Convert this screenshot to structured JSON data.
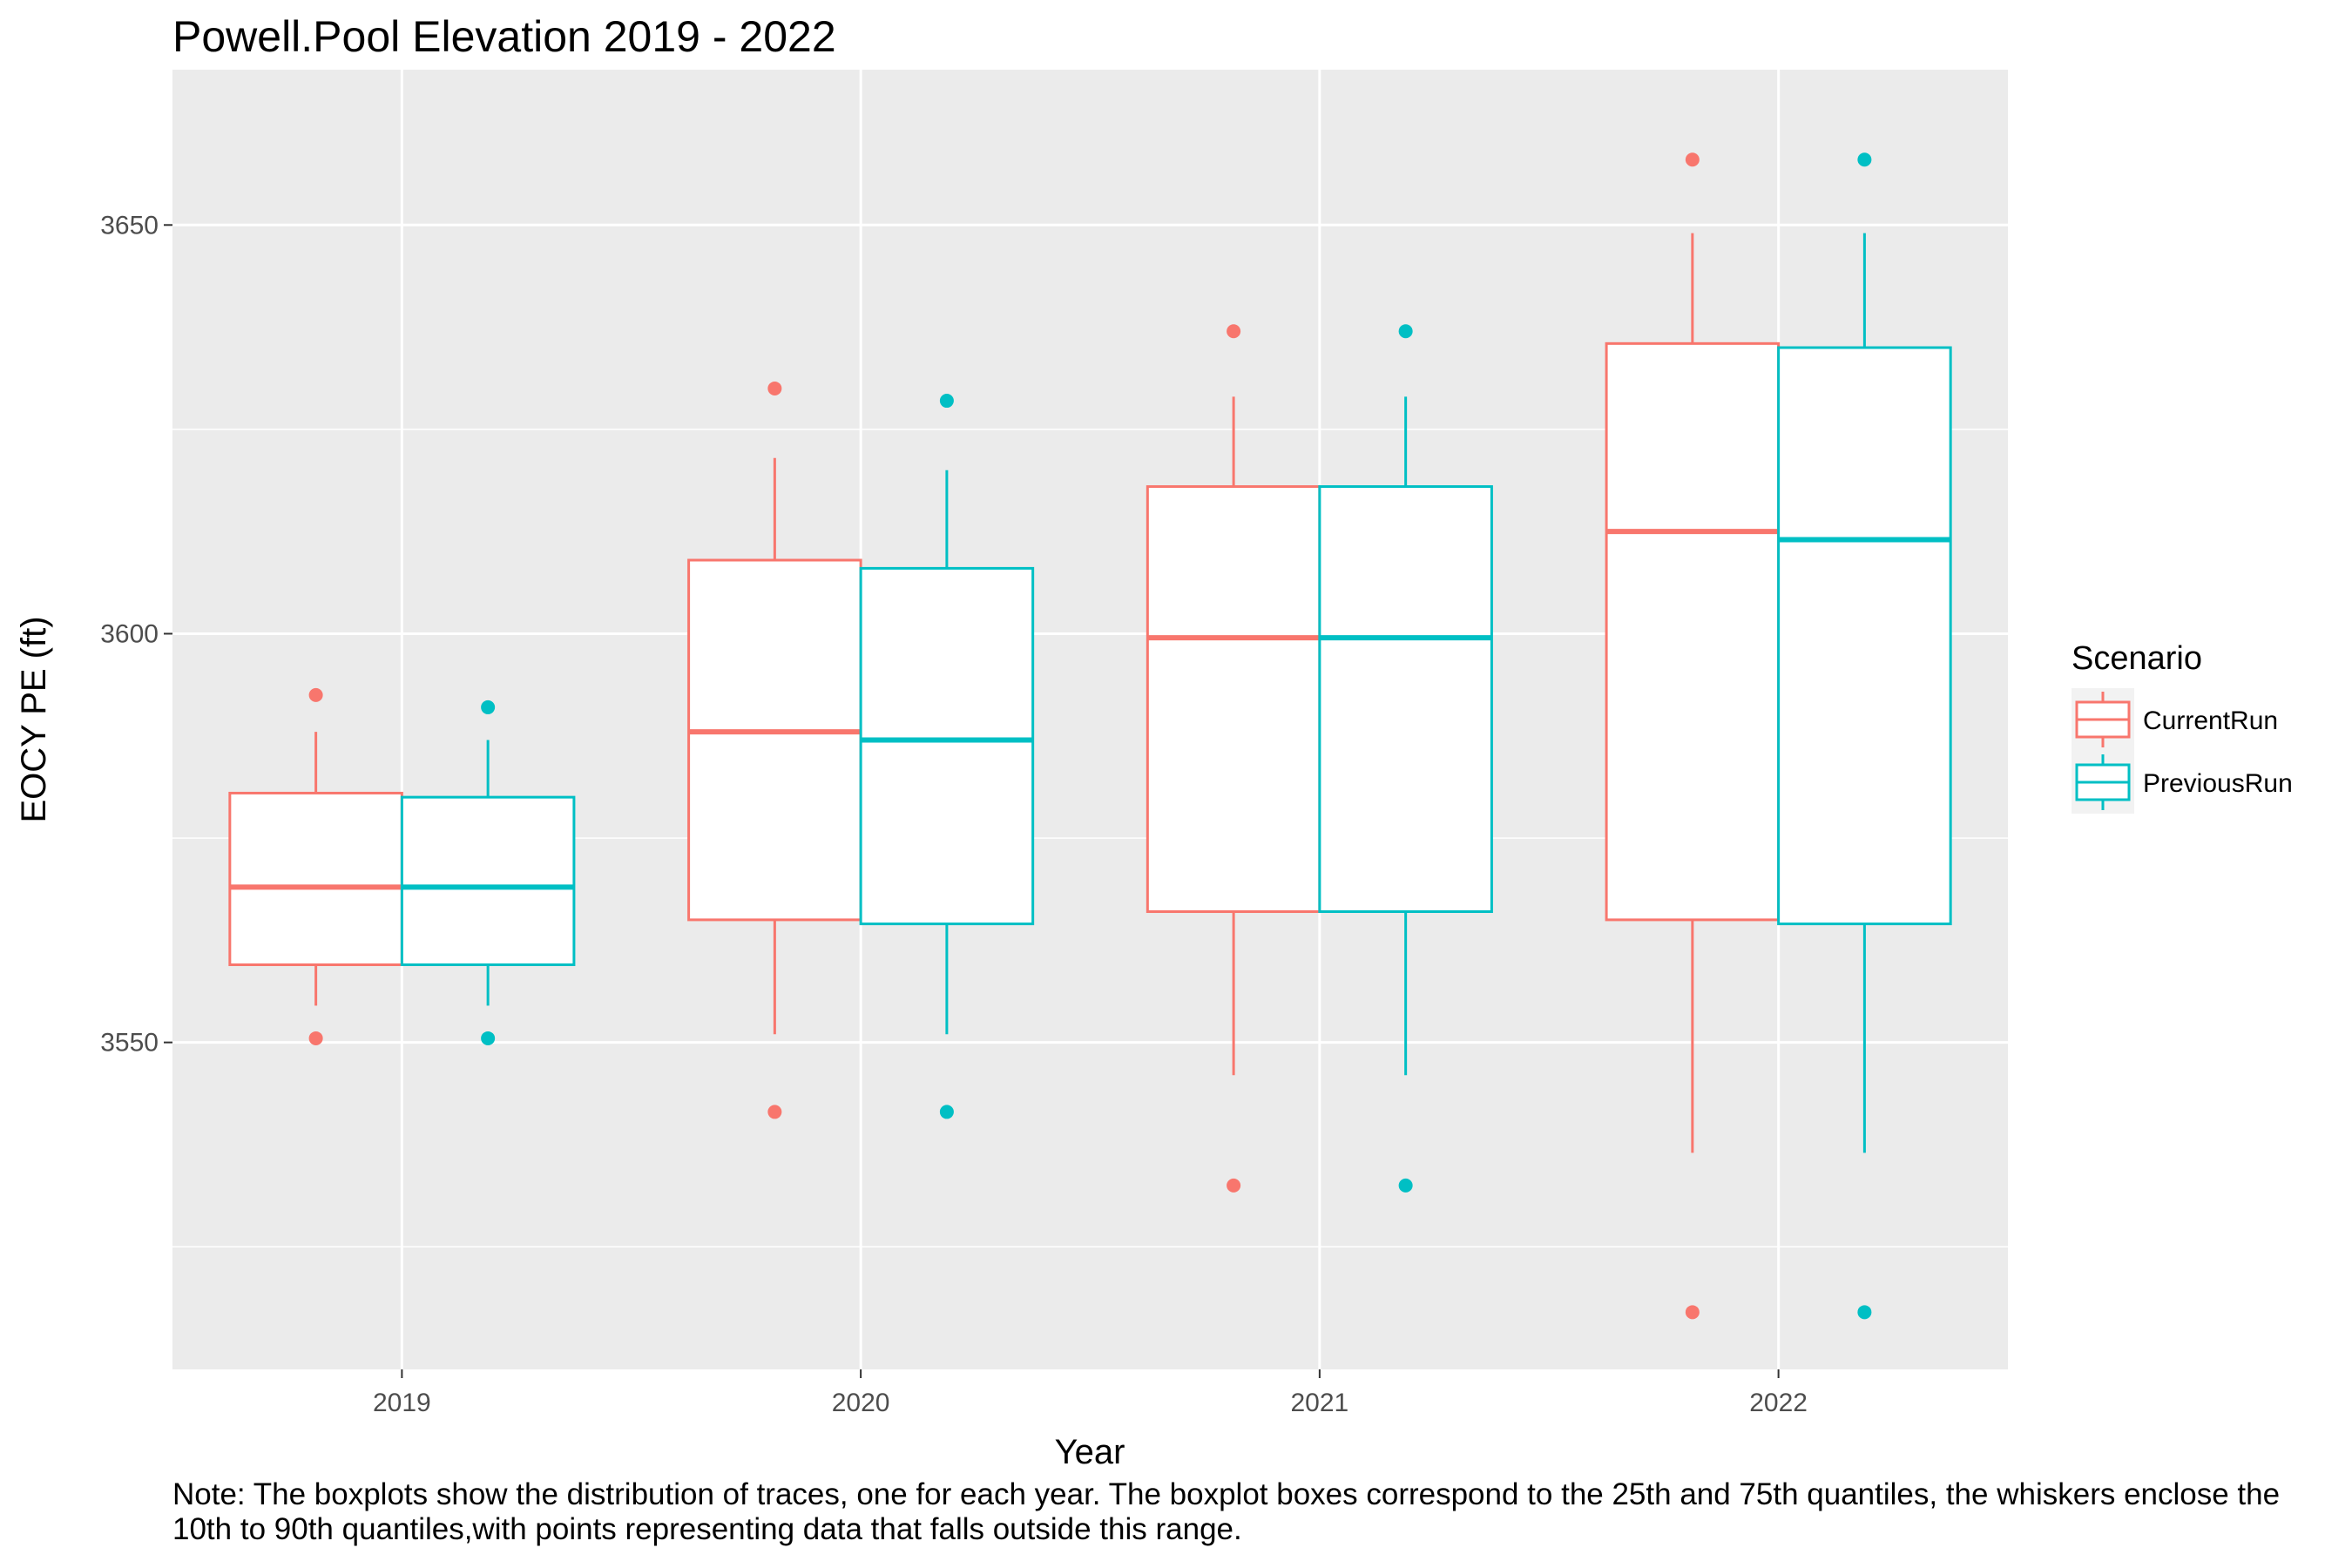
{
  "chart_data": {
    "type": "box",
    "title": "Powell.Pool Elevation 2019 - 2022",
    "xlabel": "Year",
    "ylabel": "EOCY PE (ft)",
    "ylim": [
      3510,
      3669
    ],
    "yticks": [
      3550,
      3600,
      3650
    ],
    "grid": true,
    "legend": {
      "title": "Scenario",
      "position": "right"
    },
    "categories": [
      "2019",
      "2020",
      "2021",
      "2022"
    ],
    "series": [
      {
        "name": "CurrentRun",
        "color": "#F8766D",
        "boxes": [
          {
            "whisker_low": 3554.5,
            "q1": 3559.5,
            "median": 3569,
            "q3": 3580.5,
            "whisker_high": 3588,
            "outliers": [
              3550.5,
              3592.5
            ]
          },
          {
            "whisker_low": 3551,
            "q1": 3565,
            "median": 3588,
            "q3": 3609,
            "whisker_high": 3621.5,
            "outliers": [
              3541.5,
              3630
            ]
          },
          {
            "whisker_low": 3546,
            "q1": 3566,
            "median": 3599.5,
            "q3": 3618,
            "whisker_high": 3629,
            "outliers": [
              3532.5,
              3637
            ]
          },
          {
            "whisker_low": 3536.5,
            "q1": 3565,
            "median": 3612.5,
            "q3": 3635.5,
            "whisker_high": 3649,
            "outliers": [
              3517,
              3658
            ]
          }
        ]
      },
      {
        "name": "PreviousRun",
        "color": "#00BFC4",
        "boxes": [
          {
            "whisker_low": 3554.5,
            "q1": 3559.5,
            "median": 3569,
            "q3": 3580,
            "whisker_high": 3587,
            "outliers": [
              3550.5,
              3591
            ]
          },
          {
            "whisker_low": 3551,
            "q1": 3564.5,
            "median": 3587,
            "q3": 3608,
            "whisker_high": 3620,
            "outliers": [
              3541.5,
              3628.5
            ]
          },
          {
            "whisker_low": 3546,
            "q1": 3566,
            "median": 3599.5,
            "q3": 3618,
            "whisker_high": 3629,
            "outliers": [
              3532.5,
              3637
            ]
          },
          {
            "whisker_low": 3536.5,
            "q1": 3564.5,
            "median": 3611.5,
            "q3": 3635,
            "whisker_high": 3649,
            "outliers": [
              3517,
              3658
            ]
          }
        ]
      }
    ]
  },
  "note": "Note: The boxplots show the distribution of traces, one for each year. The boxplot boxes correspond to the 25th and 75th quantiles, the whiskers enclose the 10th to 90th quantiles,with points representing data that falls outside this range."
}
